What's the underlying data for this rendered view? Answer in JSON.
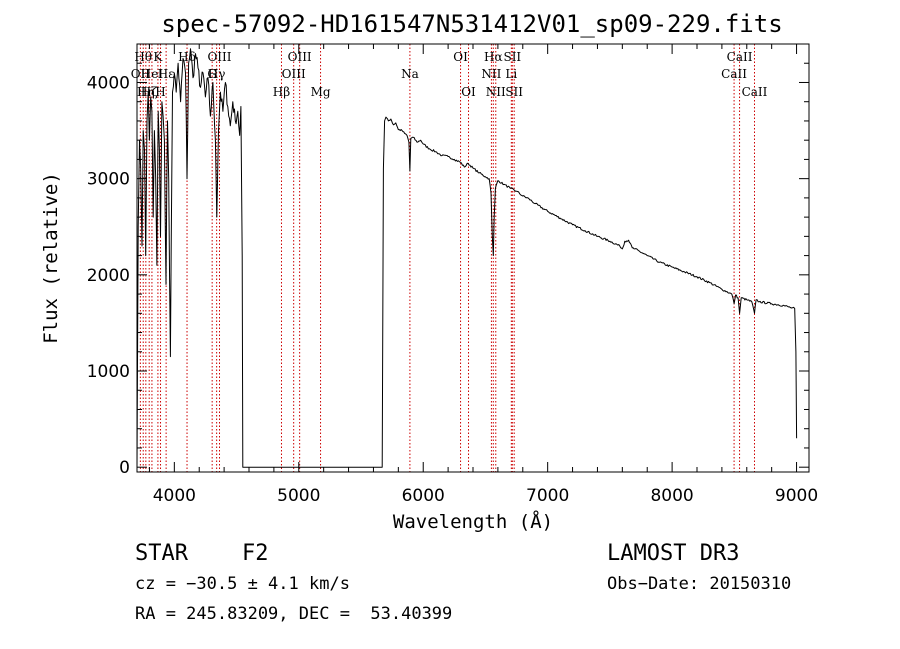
{
  "chart_data": {
    "type": "line",
    "title": "spec-57092-HD161547N531412V01_sp09-229.fits",
    "xlabel": "Wavelength (Å)",
    "ylabel": "Flux (relative)",
    "xlim": [
      3700,
      9100
    ],
    "ylim": [
      -50,
      4400
    ],
    "xticks": [
      4000,
      5000,
      6000,
      7000,
      8000,
      9000
    ],
    "yticks": [
      0,
      1000,
      2000,
      3000,
      4000
    ],
    "series": [
      {
        "name": "flux",
        "color": "#000000",
        "points": [
          [
            3700,
            0
          ],
          [
            3705,
            1300
          ],
          [
            3710,
            2500
          ],
          [
            3720,
            3400
          ],
          [
            3730,
            3100
          ],
          [
            3740,
            2300
          ],
          [
            3750,
            3500
          ],
          [
            3760,
            3300
          ],
          [
            3770,
            2200
          ],
          [
            3780,
            3600
          ],
          [
            3790,
            3900
          ],
          [
            3800,
            3400
          ],
          [
            3810,
            3850
          ],
          [
            3820,
            3700
          ],
          [
            3830,
            2600
          ],
          [
            3840,
            3500
          ],
          [
            3850,
            3000
          ],
          [
            3860,
            2100
          ],
          [
            3870,
            3700
          ],
          [
            3880,
            3300
          ],
          [
            3889,
            2400
          ],
          [
            3900,
            3800
          ],
          [
            3910,
            3650
          ],
          [
            3920,
            3400
          ],
          [
            3933,
            1900
          ],
          [
            3945,
            3600
          ],
          [
            3955,
            3000
          ],
          [
            3968,
            1150
          ],
          [
            3975,
            2300
          ],
          [
            3985,
            3900
          ],
          [
            4000,
            4100
          ],
          [
            4015,
            3900
          ],
          [
            4030,
            4200
          ],
          [
            4050,
            3800
          ],
          [
            4070,
            4250
          ],
          [
            4090,
            4100
          ],
          [
            4102,
            3000
          ],
          [
            4115,
            4200
          ],
          [
            4130,
            4350
          ],
          [
            4150,
            4050
          ],
          [
            4170,
            4300
          ],
          [
            4190,
            4150
          ],
          [
            4210,
            3950
          ],
          [
            4230,
            4100
          ],
          [
            4250,
            3850
          ],
          [
            4270,
            4050
          ],
          [
            4290,
            3650
          ],
          [
            4310,
            4000
          ],
          [
            4330,
            3400
          ],
          [
            4341,
            2600
          ],
          [
            4355,
            3500
          ],
          [
            4370,
            3900
          ],
          [
            4390,
            3700
          ],
          [
            4410,
            4000
          ],
          [
            4430,
            3750
          ],
          [
            4450,
            3550
          ],
          [
            4470,
            3800
          ],
          [
            4490,
            3600
          ],
          [
            4510,
            3700
          ],
          [
            4525,
            3450
          ],
          [
            4535,
            3750
          ],
          [
            4545,
            2200
          ],
          [
            4550,
            0
          ],
          [
            5670,
            0
          ],
          [
            5680,
            3100
          ],
          [
            5690,
            3600
          ],
          [
            5700,
            3640
          ],
          [
            5720,
            3600
          ],
          [
            5740,
            3620
          ],
          [
            5760,
            3560
          ],
          [
            5780,
            3580
          ],
          [
            5800,
            3510
          ],
          [
            5830,
            3500
          ],
          [
            5850,
            3470
          ],
          [
            5870,
            3450
          ],
          [
            5885,
            3380
          ],
          [
            5893,
            3080
          ],
          [
            5900,
            3420
          ],
          [
            5920,
            3430
          ],
          [
            5950,
            3380
          ],
          [
            5980,
            3400
          ],
          [
            6000,
            3360
          ],
          [
            6050,
            3310
          ],
          [
            6100,
            3280
          ],
          [
            6150,
            3240
          ],
          [
            6200,
            3230
          ],
          [
            6250,
            3200
          ],
          [
            6300,
            3170
          ],
          [
            6330,
            3120
          ],
          [
            6360,
            3160
          ],
          [
            6400,
            3110
          ],
          [
            6450,
            3060
          ],
          [
            6500,
            3020
          ],
          [
            6530,
            3000
          ],
          [
            6545,
            2850
          ],
          [
            6555,
            2400
          ],
          [
            6563,
            2200
          ],
          [
            6570,
            2600
          ],
          [
            6580,
            2900
          ],
          [
            6600,
            2980
          ],
          [
            6650,
            2940
          ],
          [
            6700,
            2900
          ],
          [
            6750,
            2870
          ],
          [
            6800,
            2820
          ],
          [
            6850,
            2790
          ],
          [
            6900,
            2740
          ],
          [
            7000,
            2660
          ],
          [
            7100,
            2590
          ],
          [
            7200,
            2520
          ],
          [
            7300,
            2460
          ],
          [
            7400,
            2400
          ],
          [
            7500,
            2350
          ],
          [
            7580,
            2300
          ],
          [
            7600,
            2270
          ],
          [
            7620,
            2350
          ],
          [
            7650,
            2360
          ],
          [
            7680,
            2280
          ],
          [
            7700,
            2270
          ],
          [
            7800,
            2200
          ],
          [
            7900,
            2130
          ],
          [
            8000,
            2080
          ],
          [
            8100,
            2030
          ],
          [
            8200,
            1980
          ],
          [
            8300,
            1920
          ],
          [
            8400,
            1850
          ],
          [
            8480,
            1800
          ],
          [
            8498,
            1700
          ],
          [
            8510,
            1790
          ],
          [
            8530,
            1760
          ],
          [
            8542,
            1600
          ],
          [
            8555,
            1760
          ],
          [
            8600,
            1740
          ],
          [
            8640,
            1720
          ],
          [
            8662,
            1600
          ],
          [
            8675,
            1740
          ],
          [
            8700,
            1720
          ],
          [
            8800,
            1700
          ],
          [
            8900,
            1680
          ],
          [
            8950,
            1660
          ],
          [
            8985,
            1650
          ],
          [
            8995,
            1200
          ],
          [
            9000,
            300
          ]
        ]
      }
    ],
    "lines": [
      {
        "w": 3727,
        "label": "OII",
        "row": 2
      },
      {
        "w": 3750,
        "label": "Hθ",
        "row": 1
      },
      {
        "w": 3771,
        "label": "Hη",
        "row": 3
      },
      {
        "w": 3798,
        "label": "Hζ",
        "row": 3
      },
      {
        "w": 3820,
        "label": "HeI",
        "row": 2
      },
      {
        "w": 3868,
        "label": "K",
        "row": 1
      },
      {
        "w": 3889,
        "label": "H",
        "row": 3
      },
      {
        "w": 3934,
        "label": "Hε",
        "row": 2
      },
      {
        "w": 4102,
        "label": "Hδ",
        "row": 1
      },
      {
        "w": 4304,
        "label": "G",
        "row": 2
      },
      {
        "w": 4340,
        "label": "Hγ",
        "row": 2
      },
      {
        "w": 4363,
        "label": "OIII",
        "row": 1
      },
      {
        "w": 4861,
        "label": "Hβ",
        "row": 3
      },
      {
        "w": 4959,
        "label": "OIII",
        "row": 2
      },
      {
        "w": 5007,
        "label": "OIII",
        "row": 1
      },
      {
        "w": 5175,
        "label": "Mg",
        "row": 3
      },
      {
        "w": 5893,
        "label": "Na",
        "row": 2
      },
      {
        "w": 6300,
        "label": "OI",
        "row": 1
      },
      {
        "w": 6364,
        "label": "OI",
        "row": 3
      },
      {
        "w": 6548,
        "label": "NII",
        "row": 2
      },
      {
        "w": 6563,
        "label": "Hα",
        "row": 1
      },
      {
        "w": 6583,
        "label": "NII",
        "row": 3
      },
      {
        "w": 6708,
        "label": "Li",
        "row": 2
      },
      {
        "w": 6716,
        "label": "SII",
        "row": 1
      },
      {
        "w": 6731,
        "label": "SII",
        "row": 3
      },
      {
        "w": 8498,
        "label": "CaII",
        "row": 2
      },
      {
        "w": 8542,
        "label": "CaII",
        "row": 1
      },
      {
        "w": 8662,
        "label": "CaII",
        "row": 3
      }
    ],
    "line_color": "#cc0000"
  },
  "footer": {
    "object_class": "STAR",
    "subclass": "F2",
    "survey": "LAMOST DR3",
    "cz": "cz = −30.5 ± 4.1 km/s",
    "obs_date": "Obs−Date: 20150310",
    "coords": "RA = 245.83209, DEC =  53.40399"
  }
}
